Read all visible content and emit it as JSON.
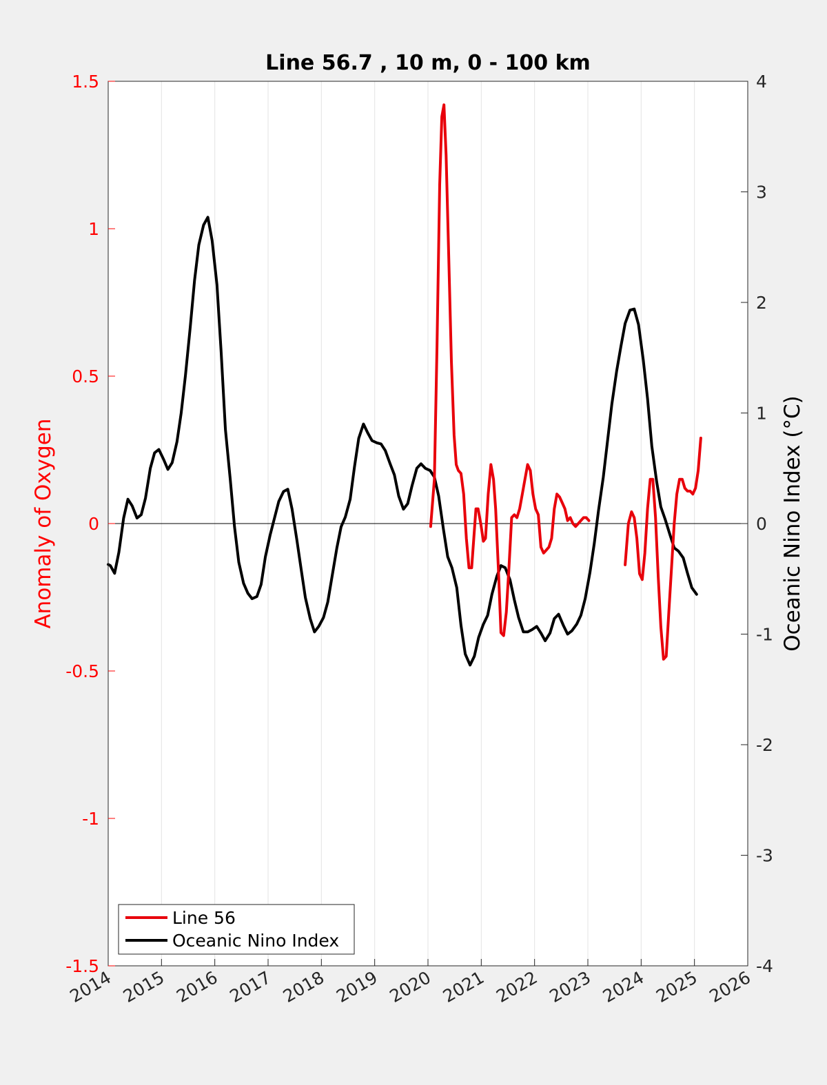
{
  "chart_data": {
    "type": "line",
    "title": "Line 56.7 , 10 m, 0 - 100 km",
    "xlabel": "",
    "ylabel_left": "Anomaly of Oxygen",
    "ylabel_right": "Oceanic Nino Index (°C)",
    "xlim": [
      2014,
      2026
    ],
    "ylim_left": [
      -1.5,
      1.5
    ],
    "ylim_right": [
      -4,
      4
    ],
    "x_ticks": [
      2014,
      2015,
      2016,
      2017,
      2018,
      2019,
      2020,
      2021,
      2022,
      2023,
      2024,
      2025,
      2026
    ],
    "x_tick_labels": [
      "2014",
      "2015",
      "2016",
      "2017",
      "2018",
      "2019",
      "2020",
      "2021",
      "2022",
      "2023",
      "2024",
      "2025",
      "2026"
    ],
    "y_left_ticks": [
      -1.5,
      -1,
      -0.5,
      0,
      0.5,
      1,
      1.5
    ],
    "y_left_tick_labels": [
      "-1.5",
      "-1",
      "-0.5",
      "0",
      "0.5",
      "1",
      "1.5"
    ],
    "y_right_ticks": [
      -4,
      -3,
      -2,
      -1,
      0,
      1,
      2,
      3,
      4
    ],
    "y_right_tick_labels": [
      "-4",
      "-3",
      "-2",
      "-1",
      "0",
      "1",
      "2",
      "3",
      "4"
    ],
    "grid": "vertical",
    "zero_line": true,
    "legend_position": "bottom-left",
    "colors": {
      "left_axis": "#ff0000",
      "oxygen": "#e8000b",
      "oni": "#000000",
      "grid": "#e3e3e3"
    },
    "series": [
      {
        "name": "Line 56",
        "axis": "left",
        "segments": [
          {
            "x": [
              2020.05,
              2020.12,
              2020.17,
              2020.22,
              2020.26,
              2020.3,
              2020.34,
              2020.39,
              2020.44,
              2020.49,
              2020.53,
              2020.57,
              2020.62,
              2020.67,
              2020.72,
              2020.77,
              2020.82,
              2020.86,
              2020.9,
              2020.94,
              2020.99,
              2021.04,
              2021.08,
              2021.13,
              2021.18,
              2021.23,
              2021.27,
              2021.32,
              2021.37,
              2021.42,
              2021.47,
              2021.52,
              2021.57,
              2021.62,
              2021.67,
              2021.72,
              2021.77,
              2021.82,
              2021.87,
              2021.92,
              2021.97,
              2022.02,
              2022.07,
              2022.12,
              2022.17,
              2022.22,
              2022.27,
              2022.32,
              2022.37,
              2022.42,
              2022.47,
              2022.52,
              2022.57,
              2022.62,
              2022.67,
              2022.72,
              2022.77,
              2022.82,
              2022.87,
              2022.92,
              2022.97,
              2023.02
            ],
            "y": [
              -0.01,
              0.15,
              0.6,
              1.15,
              1.38,
              1.42,
              1.25,
              0.9,
              0.55,
              0.3,
              0.2,
              0.18,
              0.17,
              0.1,
              -0.05,
              -0.15,
              -0.15,
              -0.05,
              0.05,
              0.05,
              0.0,
              -0.06,
              -0.05,
              0.1,
              0.2,
              0.15,
              0.05,
              -0.15,
              -0.37,
              -0.38,
              -0.3,
              -0.15,
              0.02,
              0.03,
              0.02,
              0.05,
              0.1,
              0.15,
              0.2,
              0.18,
              0.1,
              0.05,
              0.03,
              -0.08,
              -0.1,
              -0.09,
              -0.08,
              -0.05,
              0.05,
              0.1,
              0.09,
              0.07,
              0.05,
              0.01,
              0.02,
              0.0,
              -0.01,
              0.0,
              0.01,
              0.02,
              0.02,
              0.01
            ]
          },
          {
            "x": [
              2023.7,
              2023.76,
              2023.82,
              2023.87,
              2023.92,
              2023.97,
              2024.02,
              2024.07,
              2024.12,
              2024.17,
              2024.22,
              2024.27,
              2024.32,
              2024.37,
              2024.42,
              2024.47,
              2024.52,
              2024.57,
              2024.62,
              2024.67,
              2024.72,
              2024.77,
              2024.82,
              2024.87,
              2024.92,
              2024.97,
              2025.02,
              2025.07,
              2025.12
            ],
            "y": [
              -0.14,
              0.0,
              0.04,
              0.02,
              -0.05,
              -0.17,
              -0.19,
              -0.1,
              0.05,
              0.15,
              0.15,
              0.02,
              -0.18,
              -0.35,
              -0.46,
              -0.45,
              -0.3,
              -0.15,
              0.0,
              0.1,
              0.15,
              0.15,
              0.12,
              0.11,
              0.11,
              0.1,
              0.12,
              0.18,
              0.29
            ]
          }
        ]
      },
      {
        "name": "Oceanic Nino Index",
        "axis": "right",
        "segments": [
          {
            "x": [
              2014.0,
              2014.04,
              2014.12,
              2014.2,
              2014.29,
              2014.37,
              2014.45,
              2014.54,
              2014.62,
              2014.7,
              2014.79,
              2014.87,
              2014.95,
              2015.04,
              2015.12,
              2015.2,
              2015.29,
              2015.37,
              2015.45,
              2015.54,
              2015.62,
              2015.7,
              2015.79,
              2015.87,
              2015.95,
              2016.04,
              2016.12,
              2016.2,
              2016.29,
              2016.37,
              2016.45,
              2016.54,
              2016.62,
              2016.7,
              2016.79,
              2016.87,
              2016.95,
              2017.04,
              2017.12,
              2017.2,
              2017.29,
              2017.37,
              2017.45,
              2017.54,
              2017.62,
              2017.7,
              2017.79,
              2017.87,
              2017.95,
              2018.04,
              2018.12,
              2018.2,
              2018.29,
              2018.37,
              2018.45,
              2018.54,
              2018.62,
              2018.7,
              2018.79,
              2018.87,
              2018.95,
              2019.04,
              2019.12,
              2019.2,
              2019.29,
              2019.37,
              2019.45,
              2019.54,
              2019.62,
              2019.7,
              2019.79,
              2019.87,
              2019.95,
              2020.04,
              2020.12,
              2020.2,
              2020.29,
              2020.37,
              2020.45,
              2020.54,
              2020.62,
              2020.7,
              2020.79,
              2020.87,
              2020.95,
              2021.04,
              2021.12,
              2021.2,
              2021.29,
              2021.37,
              2021.45,
              2021.54,
              2021.62,
              2021.7,
              2021.79,
              2021.87,
              2021.95,
              2022.04,
              2022.12,
              2022.2,
              2022.29,
              2022.37,
              2022.45,
              2022.54,
              2022.62,
              2022.7,
              2022.79,
              2022.87,
              2022.95,
              2023.04,
              2023.12,
              2023.2,
              2023.29,
              2023.37,
              2023.45,
              2023.54,
              2023.62,
              2023.7,
              2023.79,
              2023.87,
              2023.95,
              2024.04,
              2024.12,
              2024.2,
              2024.29,
              2024.37,
              2024.45,
              2024.54,
              2024.62,
              2024.7,
              2024.79,
              2024.87,
              2024.95,
              2025.04
            ],
            "y": [
              -0.37,
              -0.38,
              -0.45,
              -0.26,
              0.05,
              0.22,
              0.16,
              0.05,
              0.08,
              0.23,
              0.5,
              0.64,
              0.67,
              0.58,
              0.49,
              0.55,
              0.74,
              1.0,
              1.34,
              1.78,
              2.2,
              2.52,
              2.7,
              2.77,
              2.56,
              2.16,
              1.55,
              0.85,
              0.4,
              -0.03,
              -0.35,
              -0.54,
              -0.63,
              -0.68,
              -0.66,
              -0.55,
              -0.3,
              -0.1,
              0.05,
              0.2,
              0.29,
              0.31,
              0.13,
              -0.15,
              -0.41,
              -0.67,
              -0.86,
              -0.98,
              -0.93,
              -0.85,
              -0.71,
              -0.48,
              -0.22,
              -0.03,
              0.06,
              0.22,
              0.51,
              0.77,
              0.9,
              0.82,
              0.75,
              0.73,
              0.72,
              0.66,
              0.54,
              0.44,
              0.25,
              0.13,
              0.18,
              0.34,
              0.5,
              0.54,
              0.5,
              0.48,
              0.42,
              0.25,
              -0.05,
              -0.3,
              -0.4,
              -0.58,
              -0.92,
              -1.18,
              -1.28,
              -1.2,
              -1.03,
              -0.91,
              -0.83,
              -0.64,
              -0.48,
              -0.38,
              -0.4,
              -0.51,
              -0.69,
              -0.85,
              -0.98,
              -0.98,
              -0.96,
              -0.93,
              -0.99,
              -1.06,
              -0.99,
              -0.86,
              -0.82,
              -0.92,
              -1.0,
              -0.97,
              -0.91,
              -0.83,
              -0.68,
              -0.44,
              -0.18,
              0.12,
              0.42,
              0.75,
              1.08,
              1.38,
              1.6,
              1.81,
              1.93,
              1.94,
              1.8,
              1.48,
              1.13,
              0.7,
              0.38,
              0.15,
              0.04,
              -0.1,
              -0.22,
              -0.25,
              -0.31,
              -0.45,
              -0.58,
              -0.64
            ]
          }
        ]
      }
    ]
  }
}
